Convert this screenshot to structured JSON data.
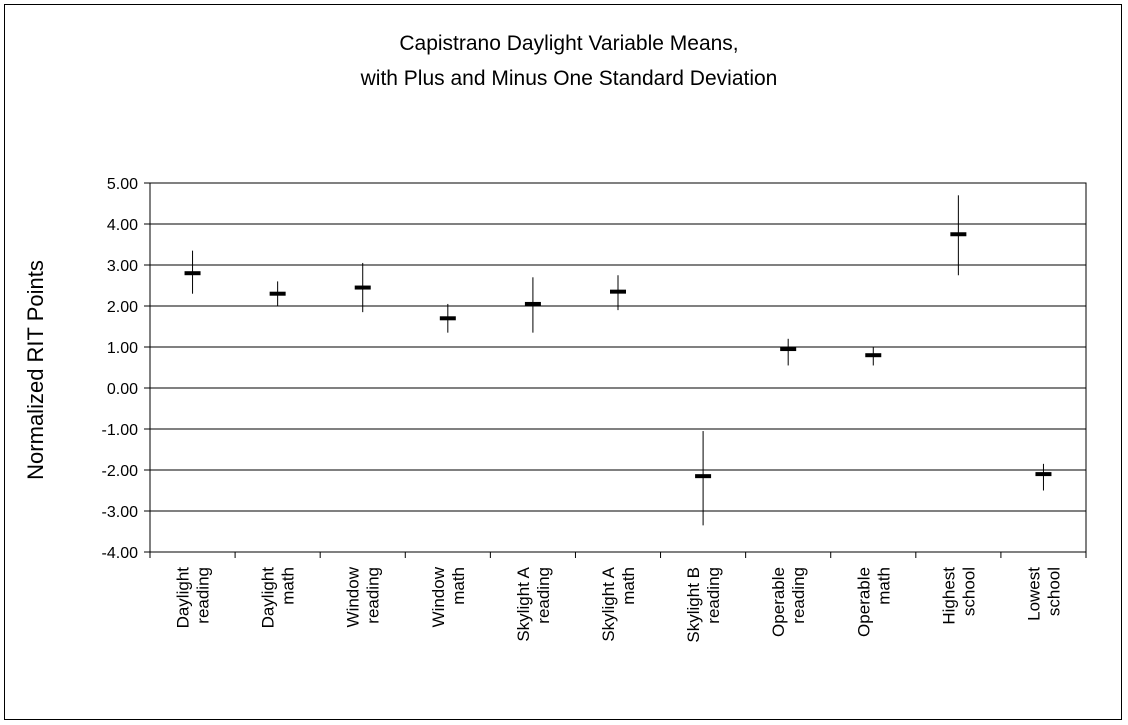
{
  "chart_data": {
    "type": "errorbar",
    "title": [
      "Capistrano Daylight Variable Means,",
      "with Plus and Minus One Standard Deviation"
    ],
    "xlabel": "",
    "ylabel": "Normalized RIT Points",
    "ylim": [
      -4,
      5
    ],
    "yticks": [
      "5.00",
      "4.00",
      "3.00",
      "2.00",
      "1.00",
      "0.00",
      "-1.00",
      "-2.00",
      "-3.00",
      "-4.00"
    ],
    "grid": true,
    "legend": "none",
    "categories": [
      [
        "Daylight",
        "reading"
      ],
      [
        "Daylight",
        "math"
      ],
      [
        "Window",
        "reading"
      ],
      [
        "Window",
        "math"
      ],
      [
        "Skylight A",
        "reading"
      ],
      [
        "Skylight A",
        "math"
      ],
      [
        "Skylight B",
        "reading"
      ],
      [
        "Operable",
        "reading"
      ],
      [
        "Operable",
        "math"
      ],
      [
        "Highest",
        "school"
      ],
      [
        "Lowest",
        "school"
      ]
    ],
    "series": [
      {
        "mean": [
          2.8,
          2.3,
          2.45,
          1.7,
          2.05,
          2.35,
          -2.15,
          0.95,
          0.8,
          3.75,
          -2.1
        ],
        "high": [
          3.35,
          2.6,
          3.05,
          2.05,
          2.7,
          2.75,
          -1.05,
          1.2,
          1.0,
          4.7,
          -1.85
        ],
        "low": [
          2.3,
          2.0,
          1.85,
          1.35,
          1.35,
          1.9,
          -3.35,
          0.55,
          0.55,
          2.75,
          -2.5
        ]
      }
    ],
    "colors": {
      "line": "#000000",
      "grid": "#000000",
      "background": "#ffffff"
    }
  }
}
